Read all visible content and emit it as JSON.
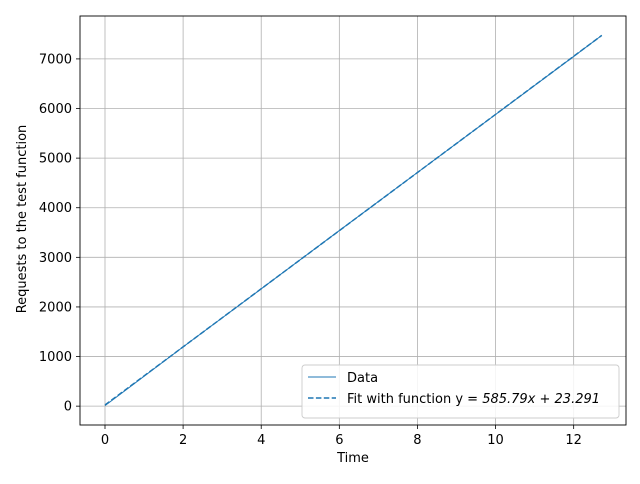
{
  "chart_data": {
    "type": "line",
    "xlabel": "Time",
    "ylabel": "Requests to the test function",
    "xlim": [
      -0.64,
      13.34
    ],
    "ylim": [
      -380,
      7865
    ],
    "xticks": [
      0,
      2,
      4,
      6,
      8,
      10,
      12
    ],
    "yticks": [
      0,
      1000,
      2000,
      3000,
      4000,
      5000,
      6000,
      7000
    ],
    "grid": true,
    "legend_position": "lower-right",
    "line_color": "#1f77b4",
    "series": [
      {
        "name": "Data",
        "style": "solid",
        "x": [
          0,
          2,
          4,
          6,
          8,
          10,
          12,
          12.72
        ],
        "y": [
          10,
          1195,
          2365,
          3540,
          4710,
          5880,
          7050,
          7475
        ]
      },
      {
        "name": "Fit with function y = 585.79x + 23.291",
        "style": "dashed",
        "slope": 585.79,
        "intercept": 23.291,
        "x": [
          0,
          12.72
        ],
        "y": [
          23.291,
          7474.54
        ]
      }
    ],
    "legend": {
      "data_label": "Data",
      "fit_prefix": "Fit with function y = ",
      "fit_formula": "585.79x + 23.291"
    }
  }
}
